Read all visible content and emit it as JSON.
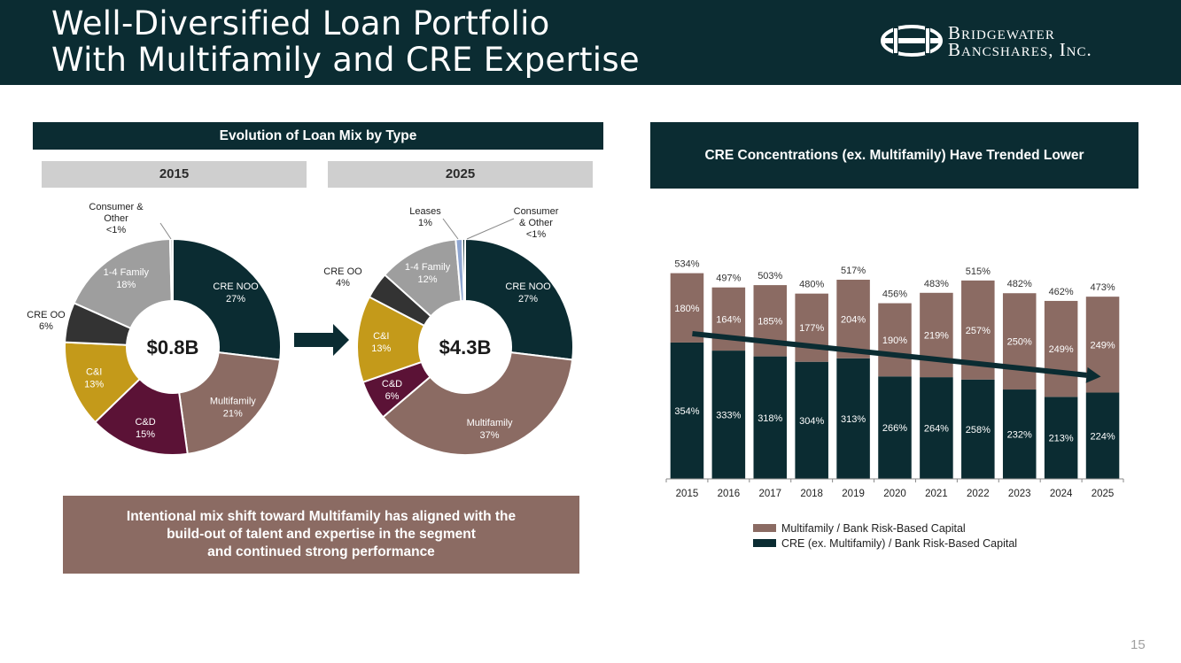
{
  "header": {
    "title_line1": "Well-Diversified Loan Portfolio",
    "title_line2": "With Multifamily and CRE Expertise",
    "logo_line1": "Bridgewater",
    "logo_line2": "Bancshares, Inc."
  },
  "left_banner": "Evolution of Loan Mix by Type",
  "right_banner": "CRE Concentrations (ex. Multifamily) Have Trended Lower",
  "note_lines": [
    "Intentional mix shift toward Multifamily has aligned with the",
    "build-out of talent and expertise in the segment",
    "and continued strong performance"
  ],
  "page_number": "15",
  "colors": {
    "dark": "#0b2c32",
    "brown": "#8b6b63",
    "maroon": "#5b1236",
    "gold": "#c49a1a",
    "charcoal": "#333333",
    "gray": "#9e9e9e",
    "blue": "#8fa6d1",
    "white": "#ffffff"
  },
  "chart_data": [
    {
      "type": "pie",
      "title": "2015",
      "center_label": "$0.8B",
      "slices": [
        {
          "label": "CRE NOO",
          "value": 27,
          "value_label": "27%",
          "color": "#0b2c32",
          "inside": true
        },
        {
          "label": "Multifamily",
          "value": 21,
          "value_label": "21%",
          "color": "#8b6b63",
          "inside": true
        },
        {
          "label": "C&D",
          "value": 15,
          "value_label": "15%",
          "color": "#5b1236",
          "inside": true
        },
        {
          "label": "C&I",
          "value": 13,
          "value_label": "13%",
          "color": "#c49a1a",
          "inside": true
        },
        {
          "label": "CRE OO",
          "value": 6,
          "value_label": "6%",
          "color": "#333333",
          "inside": false
        },
        {
          "label": "1-4 Family",
          "value": 18,
          "value_label": "18%",
          "color": "#9e9e9e",
          "inside": true
        },
        {
          "label": "Consumer & Other",
          "value": 0.4,
          "value_label": "<1%",
          "color": "#d9d9d9",
          "inside": false
        }
      ]
    },
    {
      "type": "pie",
      "title": "2025",
      "center_label": "$4.3B",
      "slices": [
        {
          "label": "CRE NOO",
          "value": 27,
          "value_label": "27%",
          "color": "#0b2c32",
          "inside": true
        },
        {
          "label": "Multifamily",
          "value": 37,
          "value_label": "37%",
          "color": "#8b6b63",
          "inside": true
        },
        {
          "label": "C&D",
          "value": 6,
          "value_label": "6%",
          "color": "#5b1236",
          "inside": true
        },
        {
          "label": "C&I",
          "value": 13,
          "value_label": "13%",
          "color": "#c49a1a",
          "inside": true
        },
        {
          "label": "CRE OO",
          "value": 4,
          "value_label": "4%",
          "color": "#333333",
          "inside": false
        },
        {
          "label": "1-4 Family",
          "value": 12,
          "value_label": "12%",
          "color": "#9e9e9e",
          "inside": true
        },
        {
          "label": "Leases",
          "value": 1,
          "value_label": "1%",
          "color": "#8fa6d1",
          "inside": false
        },
        {
          "label": "Consumer & Other",
          "value": 0.4,
          "value_label": "<1%",
          "color": "#0b2c32",
          "inside": false
        }
      ]
    },
    {
      "type": "bar",
      "stacked": true,
      "categories": [
        "2015",
        "2016",
        "2017",
        "2018",
        "2019",
        "2020",
        "2021",
        "2022",
        "2023",
        "2024",
        "2025"
      ],
      "series": [
        {
          "name": "CRE (ex. Multifamily) / Bank Risk-Based Capital",
          "color": "#0b2c32",
          "values": [
            354,
            333,
            318,
            304,
            313,
            266,
            264,
            258,
            232,
            213,
            224
          ],
          "labels": [
            "354%",
            "333%",
            "318%",
            "304%",
            "313%",
            "266%",
            "264%",
            "258%",
            "232%",
            "213%",
            "224%"
          ]
        },
        {
          "name": "Multifamily / Bank Risk-Based Capital",
          "color": "#8b6b63",
          "values": [
            180,
            164,
            185,
            177,
            204,
            190,
            219,
            257,
            250,
            249,
            249
          ],
          "labels": [
            "180%",
            "164%",
            "185%",
            "177%",
            "204%",
            "190%",
            "219%",
            "257%",
            "250%",
            "249%",
            "249%"
          ]
        }
      ],
      "totals": [
        "534%",
        "497%",
        "503%",
        "480%",
        "517%",
        "456%",
        "483%",
        "515%",
        "482%",
        "462%",
        "473%"
      ],
      "ylim": [
        0,
        540
      ],
      "trend": "CRE (ex. Multifamily) trending lower, 2015 to 2025",
      "legend_order": [
        "Multifamily / Bank Risk-Based Capital",
        "CRE (ex. Multifamily) / Bank Risk-Based Capital"
      ]
    }
  ]
}
